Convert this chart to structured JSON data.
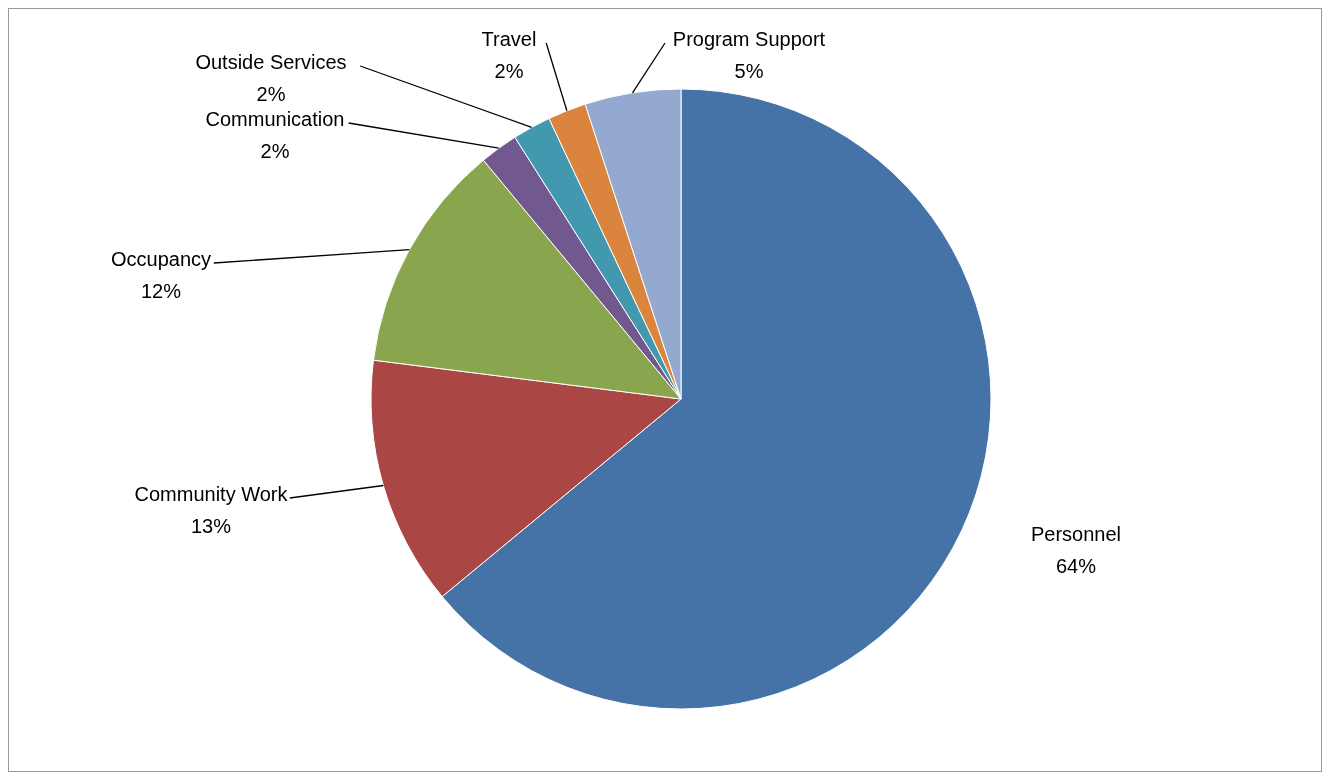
{
  "chart_data": {
    "type": "pie",
    "categories": [
      "Personnel",
      "Community Work",
      "Occupancy",
      "Communication",
      "Outside Services",
      "Travel",
      "Program Support"
    ],
    "values": [
      64,
      13,
      12,
      2,
      2,
      2,
      5
    ],
    "value_labels": [
      "64%",
      "13%",
      "12%",
      "2%",
      "2%",
      "2%",
      "5%"
    ],
    "colors": [
      "#4572a7",
      "#aa4643",
      "#89a54e",
      "#71588f",
      "#4198af",
      "#db843d",
      "#93a9cf"
    ],
    "legend": false
  }
}
